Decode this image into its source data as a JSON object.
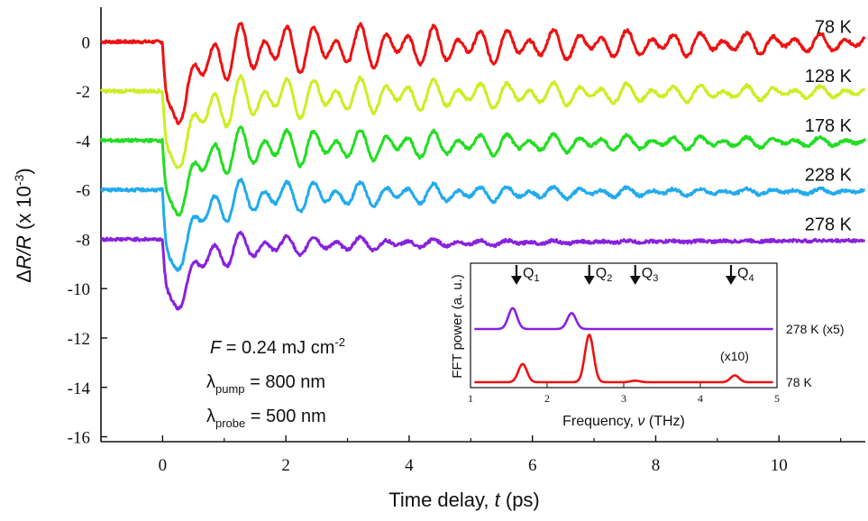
{
  "chart_data": {
    "type": "line",
    "main": {
      "xlabel_prefix": "Time delay, ",
      "xlabel_var": "t",
      "xlabel_suffix": " (ps)",
      "ylabel_delta": "Δ",
      "ylabel_var": "R/R",
      "ylabel_mid": " (x 10",
      "ylabel_exp": "-3",
      "ylabel_end": ")",
      "xlim": [
        -1.0,
        11.4
      ],
      "ylim": [
        -16.2,
        1.4
      ],
      "xticks": [
        0,
        2,
        4,
        6,
        8,
        10
      ],
      "yticks": [
        0,
        -2,
        -4,
        -6,
        -8,
        -10,
        -12,
        -14,
        -16
      ],
      "series": [
        {
          "name": "78 K",
          "color": "#ee1111",
          "offset": 0,
          "dip": -5.6,
          "amp": 1.1,
          "decay": 9.0
        },
        {
          "name": "128 K",
          "color": "#ccee22",
          "offset": -2,
          "dip": -5.4,
          "amp": 1.0,
          "decay": 7.0
        },
        {
          "name": "178 K",
          "color": "#22dd22",
          "offset": -4,
          "dip": -5.2,
          "amp": 0.95,
          "decay": 6.0
        },
        {
          "name": "228 K",
          "color": "#22aaee",
          "offset": -6,
          "dip": -5.8,
          "amp": 0.9,
          "decay": 4.5
        },
        {
          "name": "278 K",
          "color": "#8822dd",
          "offset": -8,
          "dip": -4.9,
          "amp": 0.9,
          "decay": 2.4
        }
      ]
    },
    "annotations": {
      "fluence_var": "F",
      "fluence_val": " = 0.24 mJ cm",
      "fluence_exp": "-2",
      "pump_sym": "λ",
      "pump_sub": "pump",
      "pump_val": " = 800 nm",
      "probe_sym": "λ",
      "probe_sub": "probe",
      "probe_val": " = 500 nm"
    },
    "inset": {
      "type": "line",
      "xlabel_prefix": "Frequency, ",
      "xlabel_var": "ν",
      "xlabel_suffix": " (THz)",
      "ylabel": "FFT power  (a. u.)",
      "xlim": [
        1,
        5
      ],
      "xticks": [
        1,
        2,
        3,
        4,
        5
      ],
      "markers": [
        {
          "label": "Q",
          "sub": "1",
          "x": 1.6
        },
        {
          "label": "Q",
          "sub": "2",
          "x": 2.55
        },
        {
          "label": "Q",
          "sub": "3",
          "x": 3.15
        },
        {
          "label": "Q",
          "sub": "4",
          "x": 4.4
        }
      ],
      "series": [
        {
          "name": "278 K (x5)",
          "color": "#8822dd",
          "peaks": [
            [
              1.55,
              0.55
            ],
            [
              2.32,
              0.42
            ]
          ]
        },
        {
          "name": "78 K",
          "color": "#ee1111",
          "peaks": [
            [
              1.68,
              0.48
            ],
            [
              2.55,
              1.25
            ],
            [
              3.15,
              0.04
            ],
            [
              4.45,
              0.18
            ]
          ]
        }
      ],
      "x10_label": "(x10)"
    }
  }
}
